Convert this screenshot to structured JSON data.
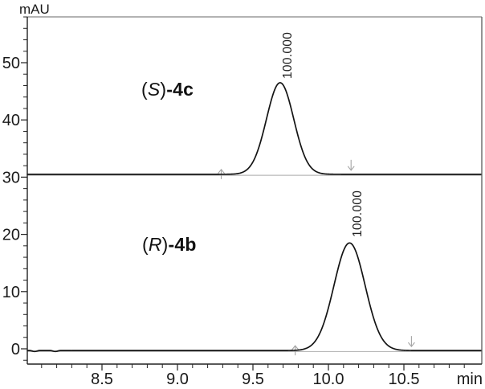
{
  "figure": {
    "y_axis_unit": "mAU",
    "x_axis_unit": "min"
  },
  "annotations": [
    {
      "open": "(",
      "stereo": "S",
      "close": ")",
      "rest_bold": "-4c"
    },
    {
      "open": "(",
      "stereo": "R",
      "close": ")",
      "rest_bold": "-4b"
    }
  ],
  "colors": {
    "trace": "#141414",
    "axis": "#222222",
    "frame_top": "#9a9a9a",
    "frame_right": "#666666",
    "integration_baseline": "#b8b8b8",
    "integration_marker": "#a4a4a4",
    "tick_label": "#1a1a1a"
  },
  "chart_data": {
    "type": "line",
    "title": "",
    "xlabel": "min",
    "ylabel": "mAU",
    "xlim": [
      8.0,
      11.02
    ],
    "ylim": [
      -2.7,
      58.0
    ],
    "x_ticks_major": [
      8.5,
      9.0,
      9.5,
      10.0,
      10.5
    ],
    "x_tick_labels": [
      "8.5",
      "9.0",
      "9.5",
      "10.0",
      "10.5"
    ],
    "x_minor_tick_step": 0.1,
    "y_ticks_major": [
      0,
      10,
      20,
      30,
      40,
      50
    ],
    "y_tick_labels": [
      "0",
      "10",
      "20",
      "30",
      "40",
      "50"
    ],
    "y_minor_tick_step": 2,
    "grid": false,
    "legend": "none",
    "series": [
      {
        "name": "(S)-4c",
        "baseline_mau": 30.5,
        "start_noise_mau": 0,
        "peaks": [
          {
            "retention_time_min": 9.68,
            "height_mau": 16.0,
            "sigma_min": 0.09,
            "apex_mau": 46.5,
            "area_percent": 100.0,
            "area_label": "100.000",
            "integration_start_min": 9.29,
            "integration_end_min": 10.15
          }
        ]
      },
      {
        "name": "(R)-4b",
        "baseline_mau": -0.3,
        "start_noise_mau": 0.16,
        "peaks": [
          {
            "retention_time_min": 10.14,
            "height_mau": 18.8,
            "sigma_min": 0.103,
            "apex_mau": 18.5,
            "area_percent": 100.0,
            "area_label": "100.000",
            "integration_start_min": 9.78,
            "integration_end_min": 10.55
          }
        ]
      }
    ]
  }
}
